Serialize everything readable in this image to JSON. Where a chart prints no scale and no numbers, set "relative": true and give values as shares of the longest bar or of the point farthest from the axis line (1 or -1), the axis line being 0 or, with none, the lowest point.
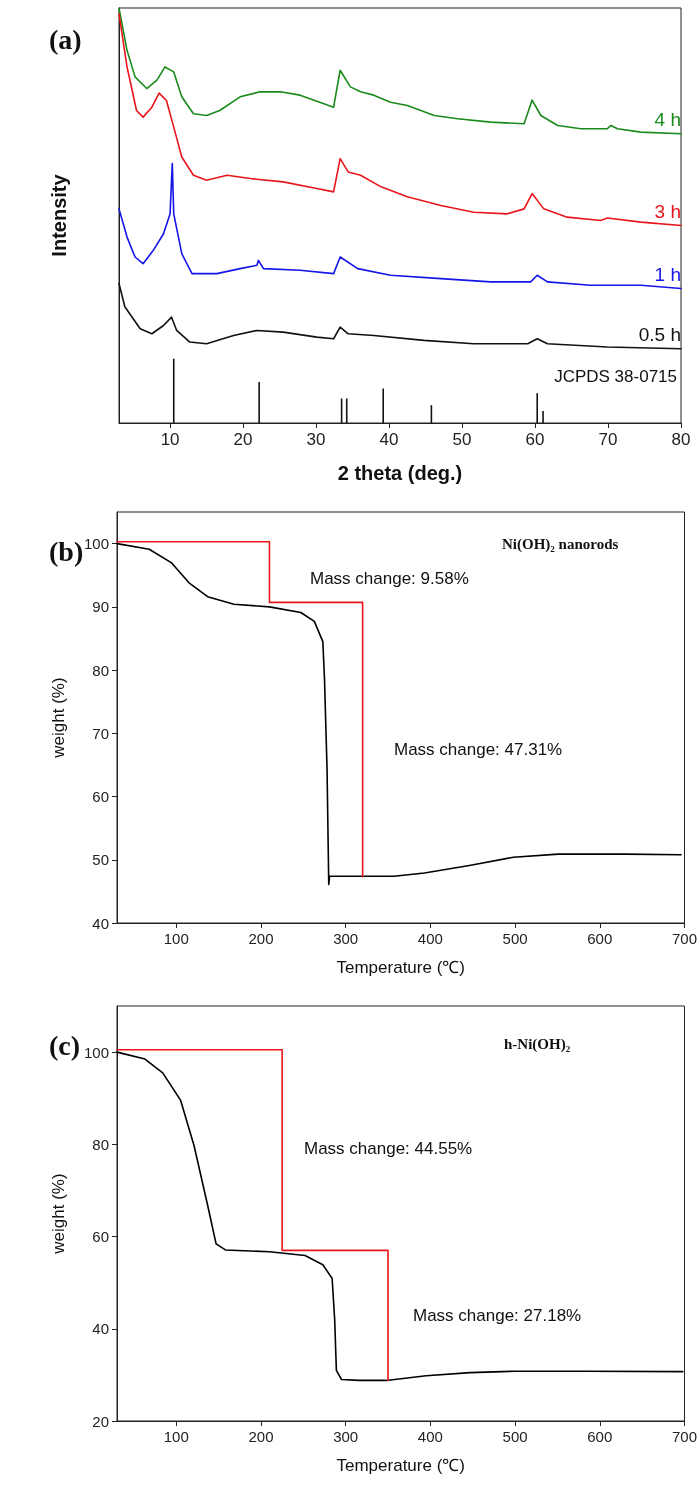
{
  "chart_data": [
    {
      "type": "line",
      "title": "(a)",
      "xlabel": "2 theta (deg.)",
      "ylabel": "Intensity",
      "relative": true,
      "xlim": [
        3,
        80
      ],
      "xticks": [
        10,
        20,
        30,
        40,
        50,
        60,
        70,
        80
      ],
      "series": [
        {
          "name": "4 h",
          "color": "#1a8a1a",
          "x": [
            3,
            4.1,
            5.2,
            6.8,
            8.2,
            9.3,
            10.5,
            11.6,
            13.2,
            15,
            16.8,
            19.6,
            22.3,
            25.1,
            27.8,
            30.5,
            32.4,
            33.3,
            34.7,
            36.1,
            37.9,
            40.2,
            42.5,
            46.2,
            49.4,
            53.9,
            58.5,
            59.6,
            60.8,
            63.1,
            66.3,
            69.9,
            70.4,
            71.3,
            74.5,
            80
          ],
          "values": [
            1.0,
            0.898,
            0.834,
            0.806,
            0.826,
            0.858,
            0.846,
            0.786,
            0.745,
            0.741,
            0.753,
            0.786,
            0.798,
            0.798,
            0.79,
            0.773,
            0.761,
            0.85,
            0.81,
            0.798,
            0.79,
            0.773,
            0.765,
            0.741,
            0.733,
            0.725,
            0.721,
            0.778,
            0.741,
            0.717,
            0.709,
            0.709,
            0.717,
            0.709,
            0.701,
            0.697
          ]
        },
        {
          "name": "3 h",
          "color": "#e8161b",
          "x": [
            3,
            4.1,
            5.4,
            6.3,
            7.5,
            8.5,
            9.5,
            10.5,
            11.6,
            13.2,
            15,
            17.8,
            21,
            25.5,
            30.1,
            32.4,
            33.3,
            34.4,
            36.1,
            38.9,
            42.5,
            47.1,
            51.6,
            56.2,
            58.5,
            59.6,
            61.2,
            64.4,
            69,
            69.9,
            74.5,
            80
          ],
          "values": [
            0.986,
            0.858,
            0.753,
            0.737,
            0.761,
            0.795,
            0.777,
            0.713,
            0.641,
            0.597,
            0.585,
            0.597,
            0.589,
            0.581,
            0.565,
            0.557,
            0.637,
            0.605,
            0.597,
            0.569,
            0.545,
            0.524,
            0.508,
            0.504,
            0.516,
            0.553,
            0.516,
            0.496,
            0.488,
            0.494,
            0.484,
            0.476
          ]
        },
        {
          "name": "1 h",
          "color": "#1515e8",
          "x": [
            3,
            4.1,
            5.2,
            6.3,
            7.7,
            9.1,
            10,
            10.3,
            10.5,
            11.6,
            13,
            16.4,
            19.6,
            21.9,
            22.1,
            22.8,
            27.8,
            32.4,
            33.3,
            35.7,
            40.2,
            47.1,
            53.9,
            59.4,
            60.3,
            61.7,
            67.6,
            74.5,
            80
          ],
          "values": [
            0.516,
            0.448,
            0.4,
            0.384,
            0.416,
            0.456,
            0.504,
            0.625,
            0.504,
            0.408,
            0.36,
            0.36,
            0.372,
            0.38,
            0.392,
            0.372,
            0.368,
            0.36,
            0.4,
            0.372,
            0.356,
            0.348,
            0.34,
            0.34,
            0.356,
            0.34,
            0.332,
            0.332,
            0.324
          ]
        },
        {
          "name": "0.5 h",
          "color": "#111111",
          "x": [
            3,
            3.8,
            5.9,
            7.5,
            9.1,
            10.2,
            10.9,
            12.7,
            15,
            18.7,
            21.9,
            25.5,
            30.1,
            32.4,
            33.3,
            34.4,
            37.9,
            44.8,
            51.6,
            59,
            60.3,
            61.7,
            69.9,
            80
          ],
          "values": [
            0.336,
            0.28,
            0.227,
            0.215,
            0.235,
            0.255,
            0.223,
            0.195,
            0.191,
            0.211,
            0.223,
            0.219,
            0.207,
            0.203,
            0.231,
            0.215,
            0.211,
            0.199,
            0.191,
            0.191,
            0.203,
            0.191,
            0.183,
            0.179
          ]
        },
        {
          "name": "JCPDS 38-0715",
          "type": "bar",
          "color": "#111111",
          "x": [
            10.5,
            22.2,
            33.5,
            34.2,
            39.2,
            45.8,
            60.3,
            61.1
          ],
          "values": [
            0.155,
            0.099,
            0.059,
            0.059,
            0.083,
            0.043,
            0.072,
            0.029
          ]
        }
      ]
    },
    {
      "type": "line",
      "title": "(b)",
      "xlabel": "Temperature (℃)",
      "ylabel": "weight (%)",
      "xlim": [
        30,
        700
      ],
      "xticks": [
        100,
        200,
        300,
        400,
        500,
        600,
        700
      ],
      "ylim": [
        40,
        105
      ],
      "yticks": [
        40,
        50,
        60,
        70,
        80,
        90,
        100
      ],
      "annotations": [
        "Ni(OH)₂ nanorods",
        "Mass change: 9.58%",
        "Mass change: 47.31%"
      ],
      "series": [
        {
          "color": "#000000",
          "x": [
            30,
            68,
            94,
            115,
            137,
            168,
            210,
            247,
            263,
            273,
            275,
            278,
            280,
            281,
            315,
            357,
            393,
            446,
            498,
            551,
            630,
            696
          ],
          "values": [
            100,
            99.1,
            97,
            93.8,
            91.6,
            90.4,
            90,
            89.1,
            87.7,
            84.5,
            78.5,
            64.3,
            46.1,
            47.4,
            47.4,
            47.4,
            47.9,
            49.1,
            50.4,
            50.9,
            50.9,
            50.8
          ]
        },
        {
          "color": "#e8161b",
          "x": [
            30,
            210,
            210,
            320,
            320
          ],
          "values": [
            100.3,
            100.3,
            90.7,
            90.7,
            47.3
          ]
        }
      ]
    },
    {
      "type": "line",
      "title": "(c)",
      "xlabel": "Temperature (℃)",
      "ylabel": "weight (%)",
      "xlim": [
        30,
        700
      ],
      "xticks": [
        100,
        200,
        300,
        400,
        500,
        600,
        700
      ],
      "ylim": [
        20,
        110
      ],
      "yticks": [
        20,
        40,
        60,
        80,
        100
      ],
      "annotations": [
        "h-Ni(OH)₂",
        "Mass change: 44.55%",
        "Mass change: 27.18%"
      ],
      "series": [
        {
          "color": "#000000",
          "x": [
            30,
            63,
            84,
            105,
            121,
            137,
            147,
            158,
            210,
            252,
            273,
            284,
            287,
            289,
            295,
            316,
            348,
            395,
            447,
            500,
            580,
            698
          ],
          "values": [
            100,
            98.5,
            95.5,
            89.6,
            79.7,
            66.8,
            58.4,
            57.1,
            56.7,
            55.9,
            53.9,
            50.9,
            42,
            31,
            29,
            28.8,
            28.8,
            29.8,
            30.5,
            30.8,
            30.8,
            30.7
          ]
        },
        {
          "color": "#e8161b",
          "x": [
            30,
            225,
            225,
            350,
            350
          ],
          "values": [
            100.5,
            100.5,
            57,
            57,
            28.8
          ]
        }
      ]
    }
  ]
}
